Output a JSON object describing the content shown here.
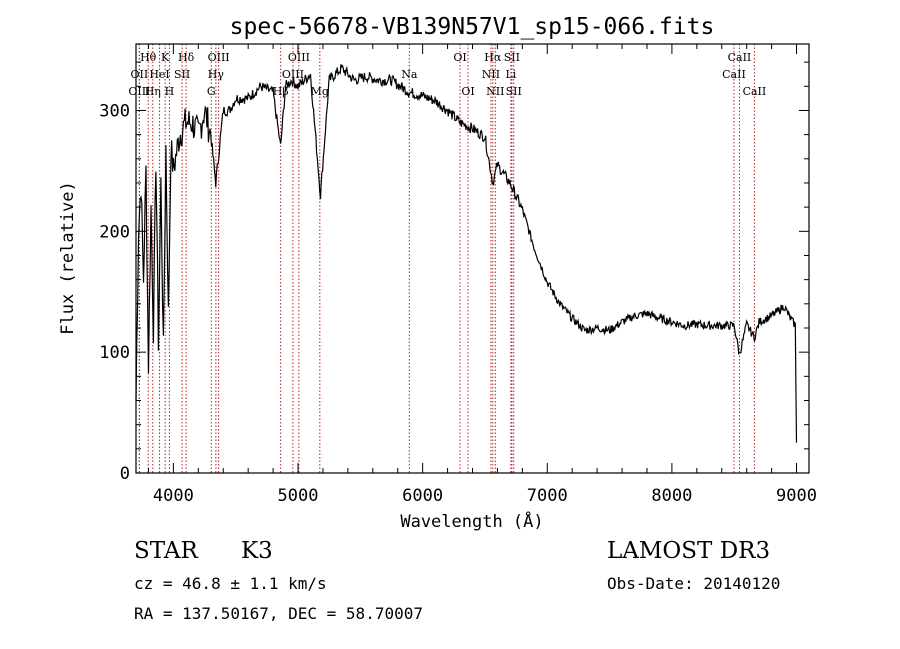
{
  "chart_data": {
    "type": "line",
    "title": "spec-56678-VB139N57V1_sp15-066.fits",
    "xlabel": "Wavelength (Å)",
    "ylabel": "Flux (relative)",
    "xlim": [
      3700,
      9100
    ],
    "ylim": [
      0,
      355
    ],
    "xticks": [
      4000,
      5000,
      6000,
      7000,
      8000,
      9000
    ],
    "yticks": [
      0,
      100,
      200,
      300
    ],
    "grid": false,
    "line_color": "#000000",
    "marker_color": "#b22222",
    "series": [
      {
        "name": "flux",
        "x": [
          3700,
          3720,
          3740,
          3760,
          3780,
          3800,
          3820,
          3840,
          3860,
          3880,
          3900,
          3920,
          3940,
          3960,
          3980,
          4000,
          4050,
          4100,
          4150,
          4200,
          4250,
          4300,
          4340,
          4400,
          4450,
          4500,
          4600,
          4700,
          4800,
          4860,
          4900,
          4950,
          5000,
          5100,
          5180,
          5250,
          5350,
          5450,
          5550,
          5650,
          5750,
          5850,
          5900,
          6000,
          6100,
          6200,
          6300,
          6400,
          6500,
          6563,
          6600,
          6700,
          6800,
          6900,
          7000,
          7100,
          7200,
          7300,
          7400,
          7500,
          7600,
          7700,
          7800,
          7900,
          8000,
          8100,
          8200,
          8300,
          8400,
          8500,
          8542,
          8600,
          8662,
          8700,
          8800,
          8900,
          8950,
          8990,
          9000
        ],
        "y": [
          60,
          200,
          240,
          160,
          250,
          90,
          220,
          120,
          260,
          110,
          240,
          100,
          270,
          130,
          270,
          250,
          280,
          290,
          290,
          280,
          300,
          280,
          240,
          300,
          300,
          310,
          310,
          320,
          315,
          270,
          320,
          325,
          320,
          330,
          230,
          325,
          335,
          325,
          328,
          325,
          325,
          318,
          315,
          312,
          308,
          300,
          290,
          285,
          278,
          240,
          255,
          240,
          218,
          185,
          158,
          140,
          128,
          118,
          120,
          118,
          125,
          130,
          132,
          128,
          125,
          122,
          123,
          122,
          122,
          122,
          98,
          123,
          112,
          125,
          130,
          138,
          128,
          122,
          25
        ]
      }
    ],
    "line_markers": [
      {
        "label": "Hθ",
        "wl": 3798,
        "row": 1
      },
      {
        "label": "OII",
        "wl": 3727,
        "row": 2
      },
      {
        "label": "OIII",
        "wl": 3727,
        "row": 3
      },
      {
        "label": "K",
        "wl": 3934,
        "row": 1
      },
      {
        "label": "HeI",
        "wl": 3889,
        "row": 2
      },
      {
        "label": "Hη",
        "wl": 3835,
        "row": 3
      },
      {
        "label": "SII",
        "wl": 4070,
        "row": 2
      },
      {
        "label": "H",
        "wl": 3968,
        "row": 3
      },
      {
        "label": "Hδ",
        "wl": 4102,
        "row": 1
      },
      {
        "label": "OIII",
        "wl": 4363,
        "row": 1
      },
      {
        "label": "Hγ",
        "wl": 4341,
        "row": 2
      },
      {
        "label": "G",
        "wl": 4304,
        "row": 3
      },
      {
        "label": "OIII",
        "wl": 5007,
        "row": 1
      },
      {
        "label": "OIII",
        "wl": 4959,
        "row": 2
      },
      {
        "label": "Hβ",
        "wl": 4861,
        "row": 3
      },
      {
        "label": "Mg",
        "wl": 5175,
        "row": 3
      },
      {
        "label": "Na",
        "wl": 5893,
        "row": 2
      },
      {
        "label": "OI",
        "wl": 6300,
        "row": 1
      },
      {
        "label": "OI",
        "wl": 6364,
        "row": 3
      },
      {
        "label": "Hα",
        "wl": 6563,
        "row": 1
      },
      {
        "label": "NII",
        "wl": 6548,
        "row": 2
      },
      {
        "label": "NII",
        "wl": 6583,
        "row": 3
      },
      {
        "label": "SII",
        "wl": 6716,
        "row": 1
      },
      {
        "label": "Li",
        "wl": 6708,
        "row": 2
      },
      {
        "label": "SII",
        "wl": 6731,
        "row": 3
      },
      {
        "label": "CaII",
        "wl": 8542,
        "row": 1
      },
      {
        "label": "CaII",
        "wl": 8498,
        "row": 2
      },
      {
        "label": "CaII",
        "wl": 8662,
        "row": 3
      }
    ]
  },
  "info": {
    "object_class": "STAR",
    "subclass": "K3",
    "survey": "LAMOST DR3",
    "cz": "cz = 46.8 ± 1.1 km/s",
    "obs_date": "Obs-Date: 20140120",
    "coords": "RA = 137.50167, DEC =  58.70007"
  }
}
